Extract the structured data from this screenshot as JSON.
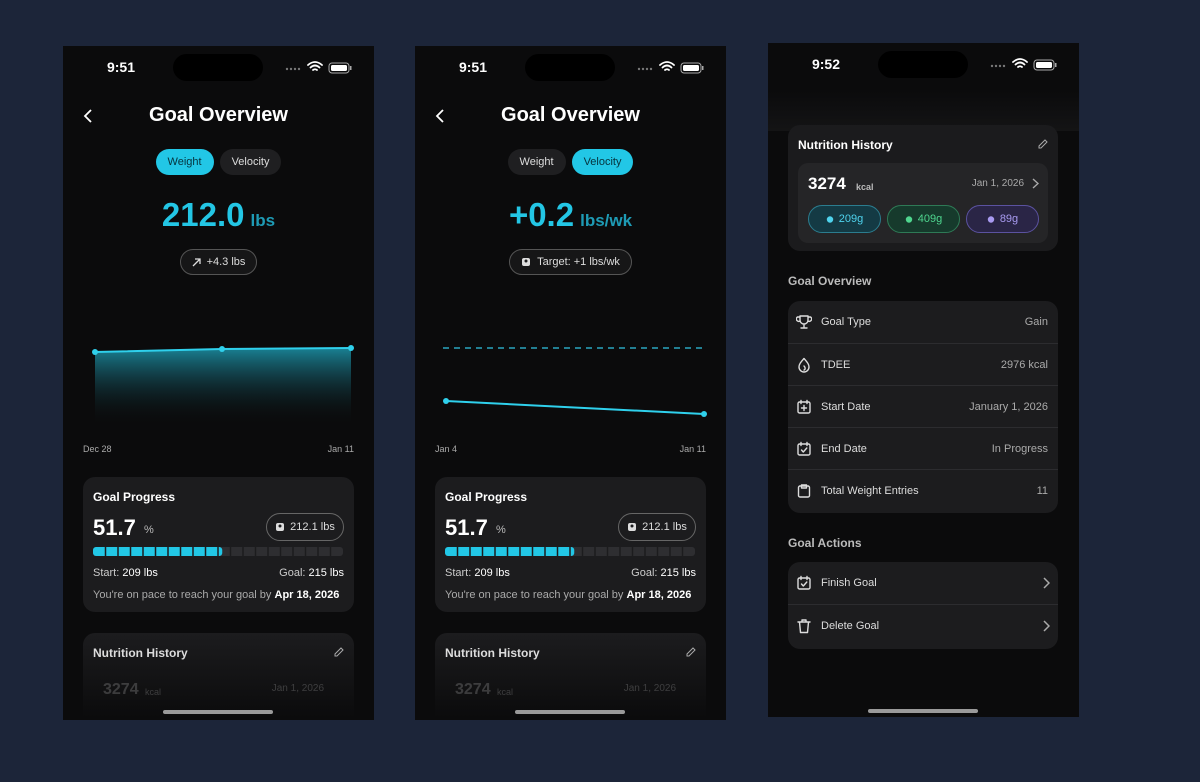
{
  "screens": [
    {
      "time": "9:51",
      "title": "Goal Overview",
      "tabs": [
        "Weight",
        "Velocity"
      ],
      "active_tab": 0,
      "headline": {
        "value": "212.0",
        "unit": "lbs"
      },
      "badge": "+4.3 lbs",
      "chart": {
        "start": "Dec 28",
        "end": "Jan 11"
      },
      "progress": {
        "title": "Goal Progress",
        "value": 51.7,
        "unit": "%",
        "current": "212.1 lbs",
        "start_label": "Start:",
        "start": "209 lbs",
        "goal_label": "Goal:",
        "goal": "215 lbs",
        "pace_text": "You're on pace to reach your goal by",
        "pace_date": "Apr 18, 2026"
      },
      "nutrition": {
        "title": "Nutrition History",
        "calories": "3274",
        "unit": "kcal",
        "date": "Jan 1, 2026"
      }
    },
    {
      "time": "9:51",
      "title": "Goal Overview",
      "tabs": [
        "Weight",
        "Velocity"
      ],
      "active_tab": 1,
      "headline": {
        "value": "+0.2",
        "unit": "lbs/wk"
      },
      "badge": "Target: +1 lbs/wk",
      "chart": {
        "start": "Jan 4",
        "end": "Jan 11"
      },
      "progress": {
        "title": "Goal Progress",
        "value": 51.7,
        "unit": "%",
        "current": "212.1 lbs",
        "start_label": "Start:",
        "start": "209 lbs",
        "goal_label": "Goal:",
        "goal": "215 lbs",
        "pace_text": "You're on pace to reach your goal by",
        "pace_date": "Apr 18, 2026"
      },
      "nutrition": {
        "title": "Nutrition History",
        "calories": "3274",
        "unit": "kcal",
        "date": "Jan 1, 2026"
      }
    },
    {
      "time": "9:52",
      "nutrition": {
        "title": "Nutrition History",
        "calories": "3274",
        "unit": "kcal",
        "date": "Jan 1, 2026",
        "macros": [
          "209g",
          "409g",
          "89g"
        ]
      },
      "goal_overview": {
        "title": "Goal Overview",
        "rows": [
          {
            "label": "Goal Type",
            "value": "Gain"
          },
          {
            "label": "TDEE",
            "value": "2976 kcal"
          },
          {
            "label": "Start Date",
            "value": "January 1, 2026"
          },
          {
            "label": "End Date",
            "value": "In Progress"
          },
          {
            "label": "Total Weight Entries",
            "value": "11"
          }
        ]
      },
      "goal_actions": {
        "title": "Goal Actions",
        "items": [
          "Finish Goal",
          "Delete Goal"
        ]
      }
    }
  ]
}
